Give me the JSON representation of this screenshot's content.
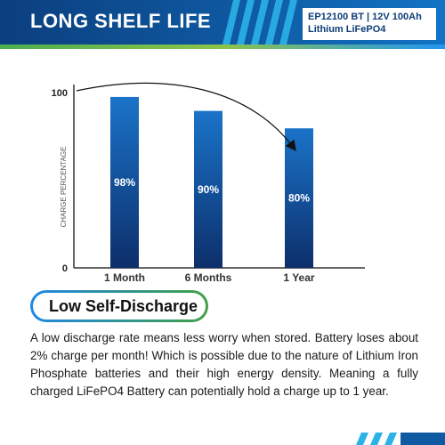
{
  "header": {
    "title": "LONG SHELF LIFE",
    "product_line1": "EP12100 BT | 12V 100Ah",
    "product_line2": "Lithium LiFePO4"
  },
  "chart_data": {
    "type": "bar",
    "categories": [
      "1 Month",
      "6 Months",
      "1 Year"
    ],
    "values": [
      98,
      90,
      80
    ],
    "data_labels": [
      "98%",
      "90%",
      "80%"
    ],
    "ylabel": "CHARGE PERCENTAGE",
    "ylim": [
      0,
      100
    ],
    "yticks": [
      "0",
      "100"
    ],
    "grid": false,
    "annotation": "curved arrow from 100 tick to 1 Year bar",
    "bar_color": "#1565c0"
  },
  "section": {
    "heading": "Low Self-Discharge",
    "body": "A low discharge rate means less worry when stored. Battery loses about 2% charge per month! Which is possible due to the nature of Lithium Iron Phosphate batteries and their high energy density. Meaning a fully charged LiFePO4 Battery can potentially hold a charge up to 1 year."
  },
  "colors": {
    "brand_blue": "#0f5aa3",
    "accent_green": "#4caf50",
    "accent_light_blue": "#2196f3"
  }
}
